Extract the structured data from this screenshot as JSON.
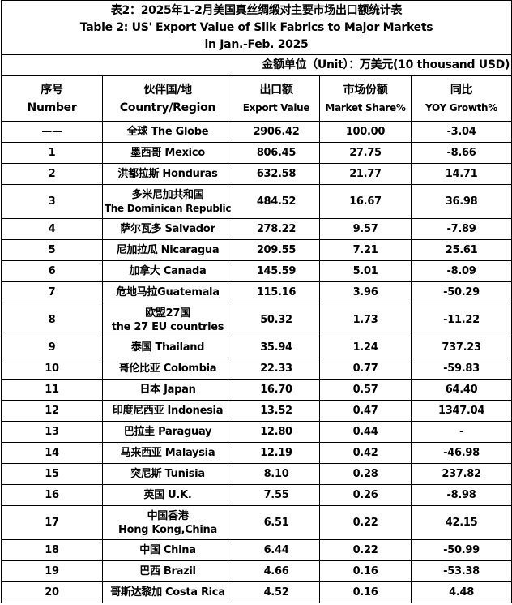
{
  "title": {
    "cn": "表2：2025年1-2月美国真丝绸缎对主要市场出口额统计表",
    "en1": "Table 2: US' Export Value of Silk Fabrics to Major Markets",
    "en2": "in Jan.-Feb. 2025"
  },
  "unit": "金额单位（Unit）：万美元(10 thousand USD)",
  "headers": [
    {
      "cn": "序号",
      "en": "Number"
    },
    {
      "cn": "伙伴国/地",
      "en": "Country/Region"
    },
    {
      "cn": "出口额",
      "en": "Export Value"
    },
    {
      "cn": "市场份额",
      "en": "Market Share%"
    },
    {
      "cn": "同比",
      "en": "YOY Growth%"
    }
  ],
  "rows": [
    {
      "no": "——",
      "c1": "全球  The Globe",
      "c2": "",
      "value": "2906.42",
      "share": "100.00",
      "yoy": "-3.04"
    },
    {
      "no": "1",
      "c1": "墨西哥 Mexico",
      "c2": "",
      "value": "806.45",
      "share": "27.75",
      "yoy": "-8.66"
    },
    {
      "no": "2",
      "c1": "洪都拉斯 Honduras",
      "c2": "",
      "value": "632.58",
      "share": "21.77",
      "yoy": "14.71"
    },
    {
      "no": "3",
      "c1": "多米尼加共和国",
      "c2": "The Dominican Republic",
      "value": "484.52",
      "share": "16.67",
      "yoy": "36.98"
    },
    {
      "no": "4",
      "c1": "萨尔瓦多 Salvador",
      "c2": "",
      "value": "278.22",
      "share": "9.57",
      "yoy": "-7.89"
    },
    {
      "no": "5",
      "c1": "尼加拉瓜 Nicaragua",
      "c2": "",
      "value": "209.55",
      "share": "7.21",
      "yoy": "25.61"
    },
    {
      "no": "6",
      "c1": "加拿大 Canada",
      "c2": "",
      "value": "145.59",
      "share": "5.01",
      "yoy": "-8.09"
    },
    {
      "no": "7",
      "c1": "危地马拉Guatemala",
      "c2": "",
      "value": "115.16",
      "share": "3.96",
      "yoy": "-50.29"
    },
    {
      "no": "8",
      "c1": "欧盟27国",
      "c2": "the 27 EU countries",
      "value": "50.32",
      "share": "1.73",
      "yoy": "-11.22"
    },
    {
      "no": "9",
      "c1": "泰国 Thailand",
      "c2": "",
      "value": "35.94",
      "share": "1.24",
      "yoy": "737.23"
    },
    {
      "no": "10",
      "c1": "哥伦比亚 Colombia",
      "c2": "",
      "value": "22.33",
      "share": "0.77",
      "yoy": "-59.83"
    },
    {
      "no": "11",
      "c1": "日本 Japan",
      "c2": "",
      "value": "16.70",
      "share": "0.57",
      "yoy": "64.40"
    },
    {
      "no": "12",
      "c1": "印度尼西亚 Indonesia",
      "c2": "",
      "value": "13.52",
      "share": "0.47",
      "yoy": "1347.04"
    },
    {
      "no": "13",
      "c1": "巴拉圭 Paraguay",
      "c2": "",
      "value": "12.80",
      "share": "0.44",
      "yoy": "-"
    },
    {
      "no": "14",
      "c1": "马来西亚 Malaysia",
      "c2": "",
      "value": "12.19",
      "share": "0.42",
      "yoy": "-46.98"
    },
    {
      "no": "15",
      "c1": "突尼斯 Tunisia",
      "c2": "",
      "value": "8.10",
      "share": "0.28",
      "yoy": "237.82"
    },
    {
      "no": "16",
      "c1": "英国 U.K.",
      "c2": "",
      "value": "7.55",
      "share": "0.26",
      "yoy": "-8.98"
    },
    {
      "no": "17",
      "c1": "中国香港",
      "c2": "Hong Kong,China",
      "value": "6.51",
      "share": "0.22",
      "yoy": "42.15"
    },
    {
      "no": "18",
      "c1": "中国 China",
      "c2": "",
      "value": "6.44",
      "share": "0.22",
      "yoy": "-50.99"
    },
    {
      "no": "19",
      "c1": "巴西 Brazil",
      "c2": "",
      "value": "4.66",
      "share": "0.16",
      "yoy": "-53.38"
    },
    {
      "no": "20",
      "c1": "哥斯达黎加 Costa Rica",
      "c2": "",
      "value": "4.52",
      "share": "0.16",
      "yoy": "4.48"
    }
  ]
}
